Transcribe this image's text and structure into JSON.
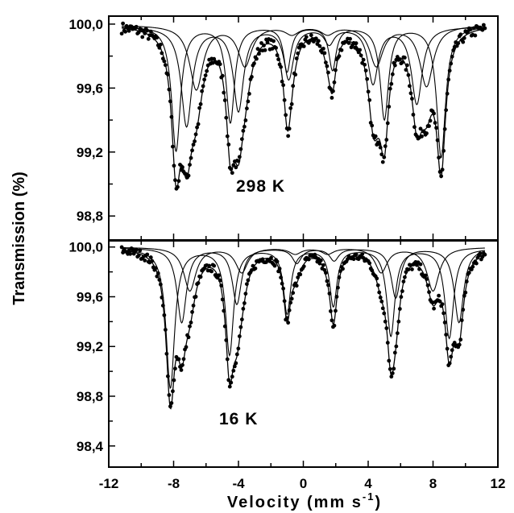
{
  "figure": {
    "ylabel": "Transmission (%)",
    "xlabel": "Velocity (mm s",
    "xlabel_sup": "-1",
    "xlabel_close": ")"
  },
  "chart_data": [
    {
      "type": "scatter",
      "title": "",
      "annotation": "298 K",
      "xlim": [
        -12,
        12
      ],
      "ylim": [
        98.65,
        100.05
      ],
      "x_ticks": [
        -12,
        -8,
        -4,
        0,
        4,
        8,
        12
      ],
      "x_tick_labels": [
        "-12",
        "-8",
        "-4",
        "0",
        "4",
        "8",
        "12"
      ],
      "y_ticks": [
        98.8,
        99.2,
        99.6,
        100.0
      ],
      "y_tick_labels": [
        "98,8",
        "99,2",
        "99,6",
        "100,0"
      ],
      "x_range": [
        -11.2,
        11.2
      ],
      "baseline": 100.0,
      "noise": 0.035,
      "color": "#000000",
      "subspectra": [
        {
          "name": "",
          "baseline": 99.99,
          "lines": [
            {
              "x": -7.85,
              "depth": 0.78,
              "hwhm": 0.33
            },
            {
              "x": -4.5,
              "depth": 0.6,
              "hwhm": 0.31
            },
            {
              "x": -1.0,
              "depth": 0.28,
              "hwhm": 0.27
            },
            {
              "x": 1.8,
              "depth": 0.27,
              "hwhm": 0.27
            },
            {
              "x": 5.0,
              "depth": 0.58,
              "hwhm": 0.31
            },
            {
              "x": 8.5,
              "depth": 0.82,
              "hwhm": 0.33
            }
          ]
        },
        {
          "name": "",
          "baseline": 99.985,
          "lines": [
            {
              "x": -7.2,
              "depth": 0.62,
              "hwhm": 0.4
            },
            {
              "x": -4.0,
              "depth": 0.52,
              "hwhm": 0.38
            },
            {
              "x": -0.9,
              "depth": 0.32,
              "hwhm": 0.36
            },
            {
              "x": 1.6,
              "depth": 0.1,
              "hwhm": 0.36
            },
            {
              "x": 4.3,
              "depth": 0.35,
              "hwhm": 0.38
            },
            {
              "x": 7.0,
              "depth": 0.48,
              "hwhm": 0.4
            }
          ]
        },
        {
          "name": "",
          "baseline": 99.995,
          "lines": [
            {
              "x": -6.6,
              "depth": 0.4,
              "hwhm": 0.5
            },
            {
              "x": -3.6,
              "depth": 0.25,
              "hwhm": 0.5
            },
            {
              "x": -0.7,
              "depth": 0.05,
              "hwhm": 0.5
            },
            {
              "x": 1.5,
              "depth": 0.05,
              "hwhm": 0.5
            },
            {
              "x": 4.5,
              "depth": 0.25,
              "hwhm": 0.5
            },
            {
              "x": 7.6,
              "depth": 0.38,
              "hwhm": 0.5
            }
          ]
        }
      ]
    },
    {
      "type": "scatter",
      "title": "",
      "annotation": "16 K",
      "xlim": [
        -12,
        12
      ],
      "ylim": [
        98.23,
        100.05
      ],
      "x_ticks": [
        -12,
        -8,
        -4,
        0,
        4,
        8,
        12
      ],
      "x_tick_labels": [
        "-12",
        "-8",
        "-4",
        "0",
        "4",
        "8",
        "12"
      ],
      "y_ticks": [
        98.4,
        98.8,
        99.2,
        99.6,
        100.0
      ],
      "y_tick_labels": [
        "98,4",
        "98,8",
        "99,2",
        "99,6",
        "100,0"
      ],
      "x_range": [
        -11.2,
        11.2
      ],
      "baseline": 100.0,
      "noise": 0.035,
      "color": "#000000",
      "subspectra": [
        {
          "name": "",
          "baseline": 99.99,
          "lines": [
            {
              "x": -8.2,
              "depth": 1.12,
              "hwhm": 0.32
            },
            {
              "x": -4.55,
              "depth": 0.85,
              "hwhm": 0.3
            },
            {
              "x": -1.0,
              "depth": 0.52,
              "hwhm": 0.27
            },
            {
              "x": 1.85,
              "depth": 0.46,
              "hwhm": 0.27
            },
            {
              "x": 5.4,
              "depth": 0.7,
              "hwhm": 0.3
            },
            {
              "x": 9.0,
              "depth": 0.72,
              "hwhm": 0.32
            }
          ]
        },
        {
          "name": "",
          "baseline": 99.995,
          "lines": [
            {
              "x": -7.5,
              "depth": 0.6,
              "hwhm": 0.35
            },
            {
              "x": -4.1,
              "depth": 0.45,
              "hwhm": 0.34
            },
            {
              "x": -0.4,
              "depth": 0.12,
              "hwhm": 0.34
            },
            {
              "x": 1.9,
              "depth": 0.1,
              "hwhm": 0.34
            },
            {
              "x": 5.7,
              "depth": 0.4,
              "hwhm": 0.34
            },
            {
              "x": 9.6,
              "depth": 0.6,
              "hwhm": 0.35
            }
          ]
        },
        {
          "name": "",
          "baseline": 100.0,
          "lines": [
            {
              "x": -7.0,
              "depth": 0.35,
              "hwhm": 0.45
            },
            {
              "x": -3.8,
              "depth": 0.2,
              "hwhm": 0.45
            },
            {
              "x": -0.5,
              "depth": 0.05,
              "hwhm": 0.45
            },
            {
              "x": 1.5,
              "depth": 0.05,
              "hwhm": 0.45
            },
            {
              "x": 4.8,
              "depth": 0.2,
              "hwhm": 0.45
            },
            {
              "x": 8.0,
              "depth": 0.35,
              "hwhm": 0.45
            }
          ]
        }
      ]
    }
  ]
}
